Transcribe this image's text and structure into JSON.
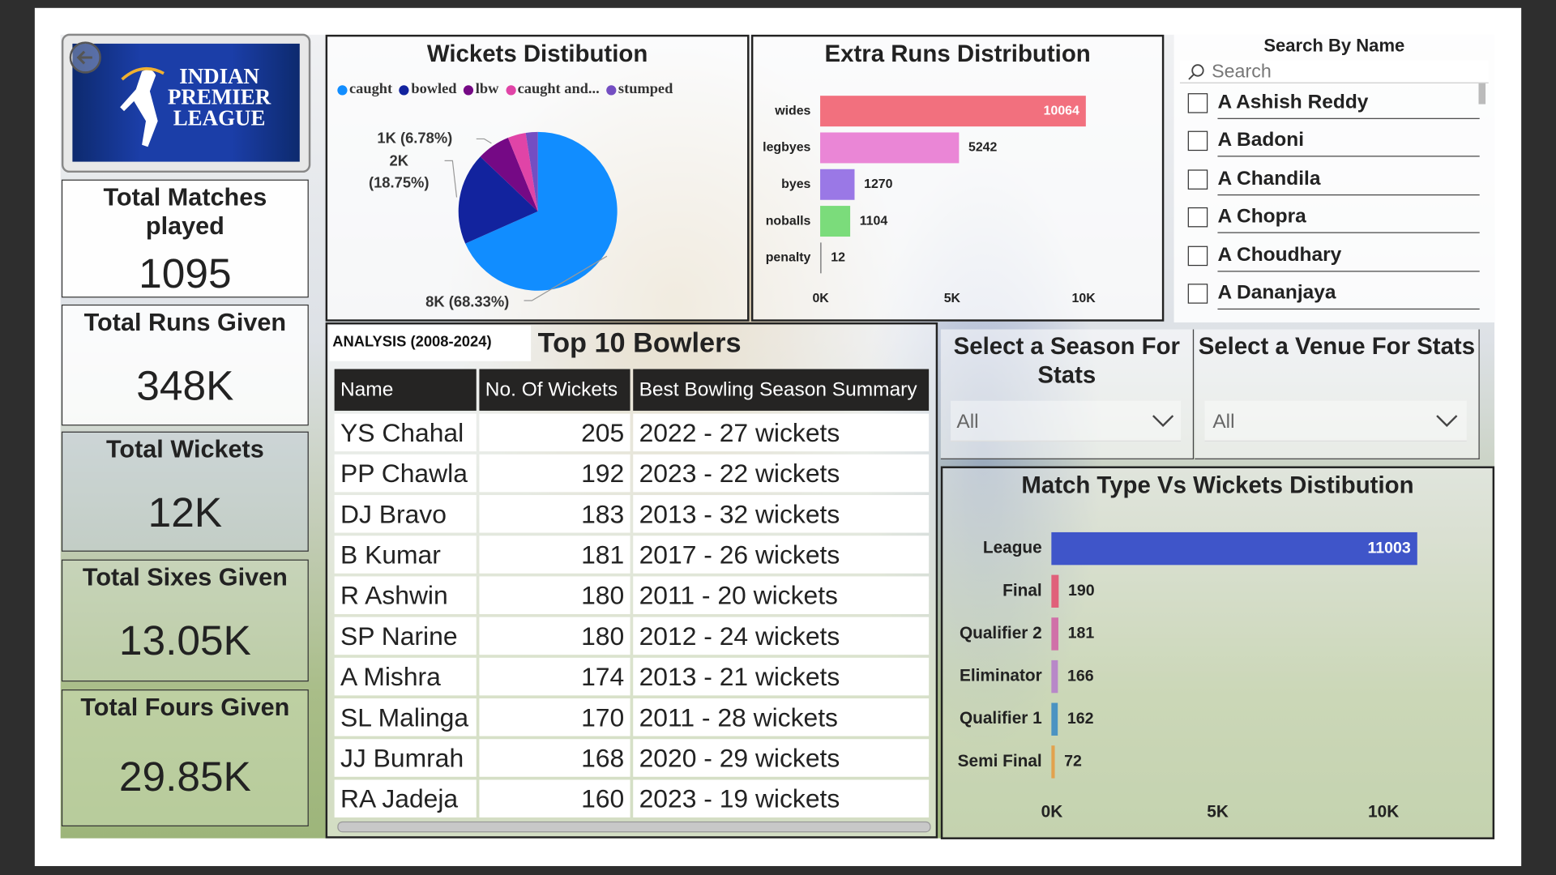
{
  "logo": {
    "lines": [
      "INDIAN",
      "PREMIER",
      "LEAGUE"
    ]
  },
  "cards": [
    {
      "title": "Total Matches played",
      "value": 1095
    },
    {
      "title": "Total Runs Given",
      "value": "348K"
    },
    {
      "title": "Total Wickets",
      "value": "12K"
    },
    {
      "title": "Total Sixes Given",
      "value": "13.05K"
    },
    {
      "title": "Total Fours Given",
      "value": "29.85K"
    }
  ],
  "chart_data": [
    {
      "type": "pie",
      "title": "Wickets Distibution",
      "categories": [
        "caught",
        "bowled",
        "lbw",
        "caught and...",
        "stumped"
      ],
      "values": [
        8200,
        2250,
        814,
        442,
        294
      ],
      "value_labels": [
        "8K (68.33%)",
        "2K (18.75%)",
        "1K (6.78%)",
        null,
        null
      ],
      "colors": [
        "#118dff",
        "#12239e",
        "#750985",
        "#e044a7",
        "#744ec2"
      ],
      "legend": "top"
    },
    {
      "type": "bar",
      "orientation": "horizontal",
      "title": "Extra Runs Distribution",
      "categories": [
        "wides",
        "legbyes",
        "byes",
        "noballs",
        "penalty"
      ],
      "values": [
        10064,
        5242,
        1270,
        1104,
        12
      ],
      "colors": [
        "#f2707e",
        "#ea86d6",
        "#9a78e6",
        "#7bdc7b",
        "#8a8a8a"
      ],
      "xlim": [
        0,
        12000
      ],
      "xticks": [
        {
          "value": 0,
          "label": "0K"
        },
        {
          "value": 5000,
          "label": "5K"
        },
        {
          "value": 10000,
          "label": "10K"
        }
      ],
      "grid": false
    },
    {
      "type": "bar",
      "orientation": "horizontal",
      "title": "Match Type Vs Wickets Distibution",
      "categories": [
        "League",
        "Final",
        "Qualifier 2",
        "Eliminator",
        "Qualifier 1",
        "Semi Final"
      ],
      "values": [
        11003,
        190,
        181,
        166,
        162,
        72
      ],
      "colors": [
        "#3f55c9",
        "#e0607a",
        "#d070a8",
        "#b888c8",
        "#4b93c2",
        "#e2a24e"
      ],
      "xlim": [
        0,
        12000
      ],
      "xticks": [
        {
          "value": 0,
          "label": "0K"
        },
        {
          "value": 5000,
          "label": "5K"
        },
        {
          "value": 10000,
          "label": "10K"
        }
      ],
      "grid": false
    }
  ],
  "table": {
    "tab": "ANALYSIS (2008-2024)",
    "title": "Top 10 Bowlers",
    "columns": [
      "Name",
      "No. Of Wickets",
      "Best Bowling Season Summary"
    ],
    "rows": [
      [
        "YS Chahal",
        205,
        "2022 - 27 wickets"
      ],
      [
        "PP Chawla",
        192,
        "2023 - 22 wickets"
      ],
      [
        "DJ Bravo",
        183,
        "2013 - 32 wickets"
      ],
      [
        "B Kumar",
        181,
        "2017 - 26 wickets"
      ],
      [
        "R Ashwin",
        180,
        "2011 - 20 wickets"
      ],
      [
        "SP Narine",
        180,
        "2012 - 24 wickets"
      ],
      [
        "A Mishra",
        174,
        "2013 - 21 wickets"
      ],
      [
        "SL Malinga",
        170,
        "2011 - 28 wickets"
      ],
      [
        "JJ Bumrah",
        168,
        "2020 - 29 wickets"
      ],
      [
        "RA Jadeja",
        160,
        "2023 - 19 wickets"
      ]
    ]
  },
  "search_slicer": {
    "title": "Search By Name",
    "placeholder": "Search",
    "items": [
      "A Ashish Reddy",
      "A Badoni",
      "A Chandila",
      "A Chopra",
      "A Choudhary",
      "A Dananjaya"
    ]
  },
  "season_slicer": {
    "title": "Select a Season For Stats",
    "value": "All"
  },
  "venue_slicer": {
    "title": "Select a Venue For Stats",
    "value": "All"
  }
}
